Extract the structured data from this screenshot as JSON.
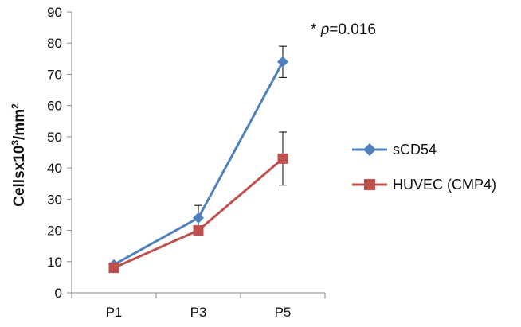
{
  "chart_data": {
    "type": "line",
    "categories": [
      "P1",
      "P3",
      "P5"
    ],
    "series": [
      {
        "name": "sCD54",
        "values": [
          9,
          24,
          74
        ],
        "error": [
          0,
          4,
          5
        ],
        "color": "#4f81bd",
        "marker": "diamond"
      },
      {
        "name": "HUVEC (CMP4)",
        "values": [
          8,
          20,
          43
        ],
        "error": [
          0,
          1,
          8.5
        ],
        "color": "#c0504d",
        "marker": "square"
      }
    ],
    "ylim": [
      0,
      90
    ],
    "yticks": [
      0,
      10,
      20,
      30,
      40,
      50,
      60,
      70,
      80,
      90
    ],
    "ylabel": {
      "prefix": "Cellsx10",
      "sup": "3",
      "suffix": "/mm",
      "sup2": "2"
    },
    "annotation": {
      "prefix": "* ",
      "italic": "p",
      "suffix": "=0.016"
    },
    "legend_position": "right",
    "grid": false
  }
}
